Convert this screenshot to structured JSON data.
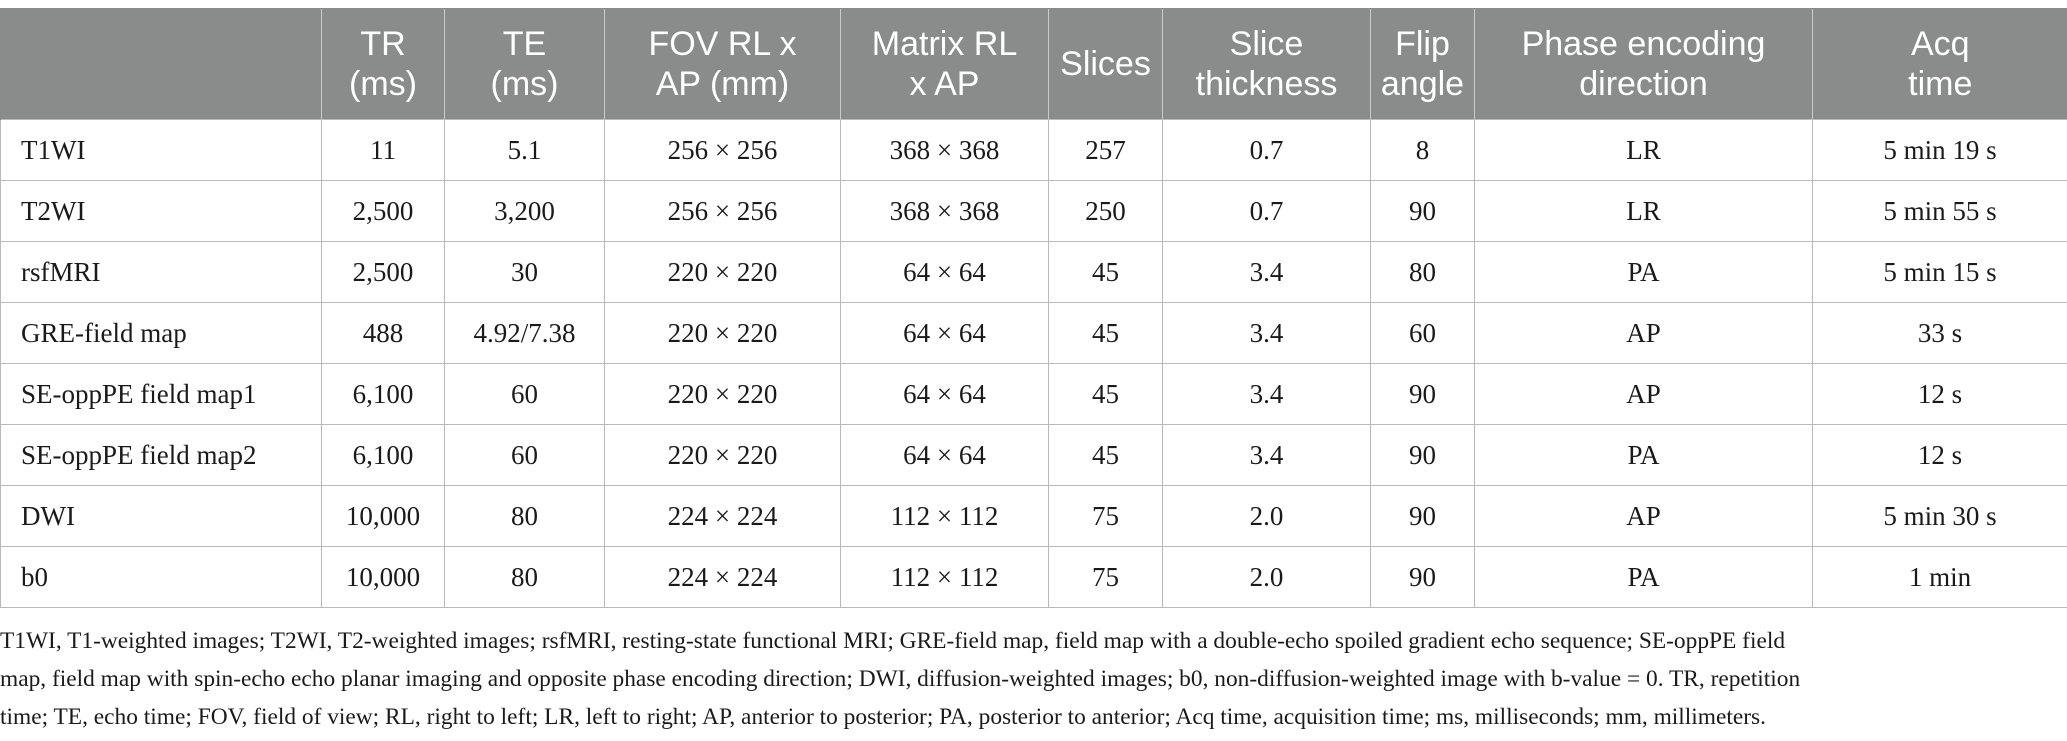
{
  "table": {
    "headers": [
      "",
      "TR\n(ms)",
      "TE\n(ms)",
      "FOV RL x\nAP (mm)",
      "Matrix RL\nx AP",
      "Slices",
      "Slice\nthickness",
      "Flip\nangle",
      "Phase encoding\ndirection",
      "Acq\ntime"
    ],
    "rows": [
      [
        "T1WI",
        "11",
        "5.1",
        "256 × 256",
        "368 × 368",
        "257",
        "0.7",
        "8",
        "LR",
        "5 min 19 s"
      ],
      [
        "T2WI",
        "2,500",
        "3,200",
        "256 × 256",
        "368 × 368",
        "250",
        "0.7",
        "90",
        "LR",
        "5 min 55 s"
      ],
      [
        "rsfMRI",
        "2,500",
        "30",
        "220 × 220",
        "64 × 64",
        "45",
        "3.4",
        "80",
        "PA",
        "5 min 15 s"
      ],
      [
        "GRE-field map",
        "488",
        "4.92/7.38",
        "220 × 220",
        "64 × 64",
        "45",
        "3.4",
        "60",
        "AP",
        "33 s"
      ],
      [
        "SE-oppPE field map1",
        "6,100",
        "60",
        "220 × 220",
        "64 × 64",
        "45",
        "3.4",
        "90",
        "AP",
        "12 s"
      ],
      [
        "SE-oppPE field map2",
        "6,100",
        "60",
        "220 × 220",
        "64 × 64",
        "45",
        "3.4",
        "90",
        "PA",
        "12 s"
      ],
      [
        "DWI",
        "10,000",
        "80",
        "224 × 224",
        "112 × 112",
        "75",
        "2.0",
        "90",
        "AP",
        "5 min 30 s"
      ],
      [
        "b0",
        "10,000",
        "80",
        "224 × 224",
        "112 × 112",
        "75",
        "2.0",
        "90",
        "PA",
        "1 min"
      ]
    ]
  },
  "footnote": {
    "lines": [
      "T1WI, T1-weighted images; T2WI, T2-weighted images; rsfMRI, resting-state functional MRI; GRE-field map, field map with a double-echo spoiled gradient echo sequence; SE-oppPE field",
      "map, field map with spin-echo echo planar imaging and opposite phase encoding direction; DWI, diffusion-weighted images; b0, non-diffusion-weighted image with b-value = 0. TR, repetition",
      "time; TE, echo time; FOV, field of view; RL, right to left; LR, left to right; AP, anterior to posterior; PA, posterior to anterior; Acq time, acquisition time; ms, milliseconds; mm, millimeters."
    ]
  }
}
